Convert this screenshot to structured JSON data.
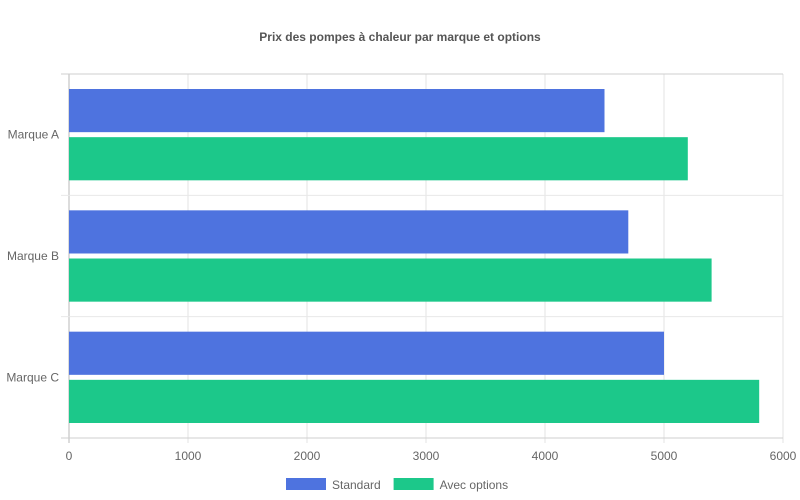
{
  "chart_data": {
    "type": "bar",
    "orientation": "horizontal",
    "title": "Prix des pompes à chaleur par marque et options",
    "xlabel": "",
    "ylabel": "",
    "categories": [
      "Marque A",
      "Marque B",
      "Marque C"
    ],
    "series": [
      {
        "name": "Standard",
        "values": [
          4500,
          4700,
          5000
        ],
        "color": "#4e73df"
      },
      {
        "name": "Avec options",
        "values": [
          5200,
          5400,
          5800
        ],
        "color": "#1cc88a"
      }
    ],
    "xlim": [
      0,
      6000
    ],
    "x_ticks": [
      "0",
      "1000",
      "2000",
      "3000",
      "4000",
      "5000",
      "6000"
    ],
    "grid": true,
    "legend_position": "bottom"
  }
}
